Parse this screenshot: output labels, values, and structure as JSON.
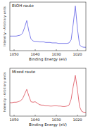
{
  "chart_data": [
    {
      "type": "line",
      "title": "EtOH route",
      "xlabel": "Binding Energy (eV)",
      "ylabel": "Intensity - Arbitrary units",
      "x": [
        1052,
        1051,
        1050,
        1049,
        1048,
        1047,
        1046,
        1045,
        1044,
        1043,
        1042,
        1041,
        1040,
        1039,
        1038,
        1037,
        1036,
        1035,
        1034,
        1033,
        1032,
        1031,
        1030,
        1029,
        1028,
        1027,
        1026,
        1025,
        1024,
        1023,
        1022,
        1021,
        1020,
        1019,
        1018,
        1017,
        1016
      ],
      "series": [
        {
          "color": "#6f6fe8",
          "values": [
            0.3,
            0.3,
            0.3,
            0.3,
            0.31,
            0.32,
            0.36,
            0.48,
            0.62,
            0.4,
            0.24,
            0.2,
            0.19,
            0.19,
            0.18,
            0.18,
            0.18,
            0.17,
            0.17,
            0.17,
            0.16,
            0.16,
            0.16,
            0.15,
            0.15,
            0.15,
            0.15,
            0.15,
            0.16,
            0.22,
            0.55,
            0.92,
            0.45,
            0.12,
            0.08,
            0.07,
            0.07
          ]
        }
      ],
      "xlim": [
        1052,
        1016
      ],
      "xticks": [
        1050,
        1040,
        1030,
        1020
      ],
      "ylim": [
        0,
        1
      ],
      "tick_labels": "x"
    },
    {
      "type": "line",
      "title": "Mixed route",
      "xlabel": "Binding Energy (eV)",
      "ylabel": "Intensity - Arbitrary units",
      "x": [
        1052,
        1051,
        1050,
        1049,
        1048,
        1047,
        1046,
        1045,
        1044,
        1043,
        1042,
        1041,
        1040,
        1039,
        1038,
        1037,
        1036,
        1035,
        1034,
        1033,
        1032,
        1031,
        1030,
        1029,
        1028,
        1027,
        1026,
        1025,
        1024,
        1023,
        1022,
        1021,
        1020,
        1019,
        1018,
        1017,
        1016
      ],
      "series": [
        {
          "color": "#e0606a",
          "values": [
            0.28,
            0.28,
            0.29,
            0.29,
            0.3,
            0.32,
            0.36,
            0.46,
            0.56,
            0.42,
            0.3,
            0.29,
            0.3,
            0.27,
            0.24,
            0.23,
            0.23,
            0.22,
            0.22,
            0.21,
            0.21,
            0.22,
            0.22,
            0.21,
            0.21,
            0.2,
            0.2,
            0.21,
            0.23,
            0.35,
            0.62,
            0.85,
            0.55,
            0.2,
            0.1,
            0.08,
            0.08
          ]
        }
      ],
      "xlim": [
        1052,
        1016
      ],
      "xticks": [
        1050,
        1040,
        1030,
        1020
      ],
      "ylim": [
        0,
        1
      ],
      "tick_labels": "x"
    }
  ]
}
